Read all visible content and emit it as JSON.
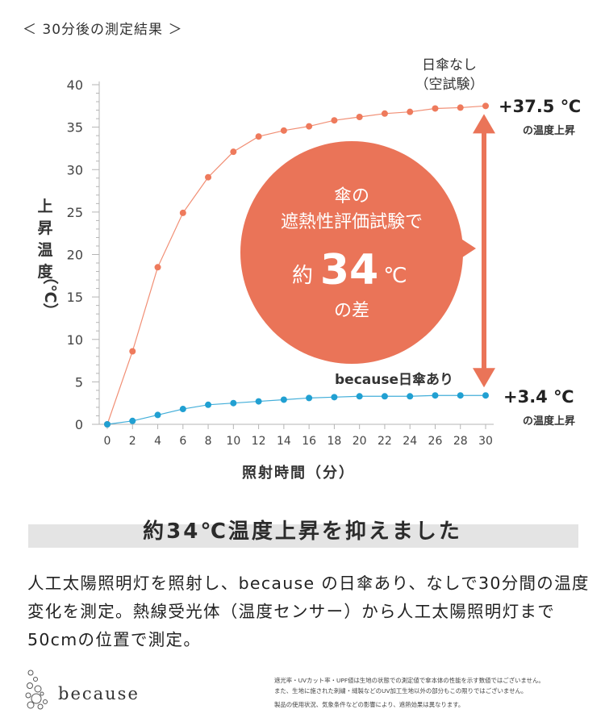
{
  "header": "＜ 30分後の測定結果 ＞",
  "chart_data": {
    "type": "line",
    "ylabel": "上昇温度（℃）",
    "xlabel": "照射時間（分）",
    "ylim": [
      0,
      40
    ],
    "xlim": [
      0,
      30
    ],
    "yticks": [
      "0",
      "5",
      "10",
      "15",
      "20",
      "25",
      "30",
      "35",
      "40"
    ],
    "xticks": [
      "0",
      "2",
      "4",
      "6",
      "8",
      "10",
      "12",
      "14",
      "16",
      "18",
      "20",
      "22",
      "24",
      "26",
      "28",
      "30"
    ],
    "x": [
      0,
      2,
      4,
      6,
      8,
      10,
      12,
      14,
      16,
      18,
      20,
      22,
      24,
      26,
      28,
      30
    ],
    "series": [
      {
        "name": "日傘なし（空試験）",
        "name_line1": "日傘なし",
        "name_line2": "（空試験）",
        "color": "#ee7a5c",
        "values": [
          0,
          8.6,
          18.5,
          24.9,
          29.1,
          32.1,
          33.9,
          34.6,
          35.1,
          35.8,
          36.2,
          36.6,
          36.8,
          37.2,
          37.3,
          37.5
        ],
        "end_value": "+37.5 ℃",
        "end_note": "の温度上昇"
      },
      {
        "name": "because日傘あり",
        "color": "#21a0d2",
        "values": [
          0,
          0.4,
          1.1,
          1.8,
          2.3,
          2.5,
          2.7,
          2.9,
          3.1,
          3.2,
          3.3,
          3.3,
          3.3,
          3.4,
          3.4,
          3.4
        ],
        "end_value": "+3.4 ℃",
        "end_note": "の温度上昇"
      }
    ],
    "callout": {
      "line1": "傘の",
      "line2": "遮熱性評価試験で",
      "prefix": "約",
      "number": "34",
      "unit": "℃",
      "line4": "の差",
      "color": "#ea7458"
    }
  },
  "summary": "約34℃温度上昇を抑えました",
  "description": "人工太陽照明灯を照射し、because の日傘あり、なしで30分間の温度変化を測定。熱線受光体（温度センサー）から人工太陽照明灯まで 50cmの位置で測定。",
  "brand": "because",
  "notes": [
    "遮光率・UVカット率・UPF値は生地の状態での測定値で傘本体の性能を示す数値ではございません。",
    "また、生地に施された刺繍・縫製などのUV加工生地以外の部分もこの限りではございません。",
    "製品の使用状況、気象条件などの影響により、遮熱効果は異なります。"
  ]
}
